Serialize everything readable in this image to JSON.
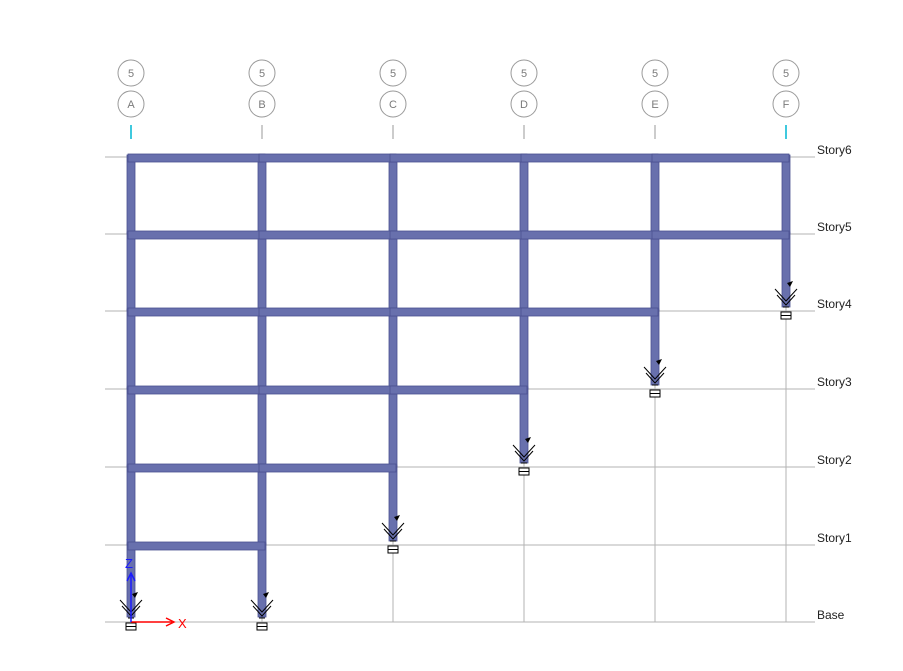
{
  "colors": {
    "frame": "#6870ad",
    "frame_edge": "#4a5190",
    "gridline": "#b3b3b3",
    "bubble": "#9a9a9a",
    "grid_tick": "#00b7d3",
    "axis_x": "#ff0000",
    "axis_z": "#1a1aff",
    "support": "#000000"
  },
  "grid_lines": [
    {
      "label": "A",
      "bubble_top": "5",
      "highlight": true
    },
    {
      "label": "B",
      "bubble_top": "5",
      "highlight": false
    },
    {
      "label": "C",
      "bubble_top": "5",
      "highlight": false
    },
    {
      "label": "D",
      "bubble_top": "5",
      "highlight": false
    },
    {
      "label": "E",
      "bubble_top": "5",
      "highlight": false
    },
    {
      "label": "F",
      "bubble_top": "5",
      "highlight": true
    }
  ],
  "stories": [
    "Base",
    "Story1",
    "Story2",
    "Story3",
    "Story4",
    "Story5",
    "Story6"
  ],
  "column_base_level": [
    0,
    0,
    1,
    2,
    3,
    4
  ],
  "axes": {
    "x_label": "X",
    "z_label": "Z"
  }
}
